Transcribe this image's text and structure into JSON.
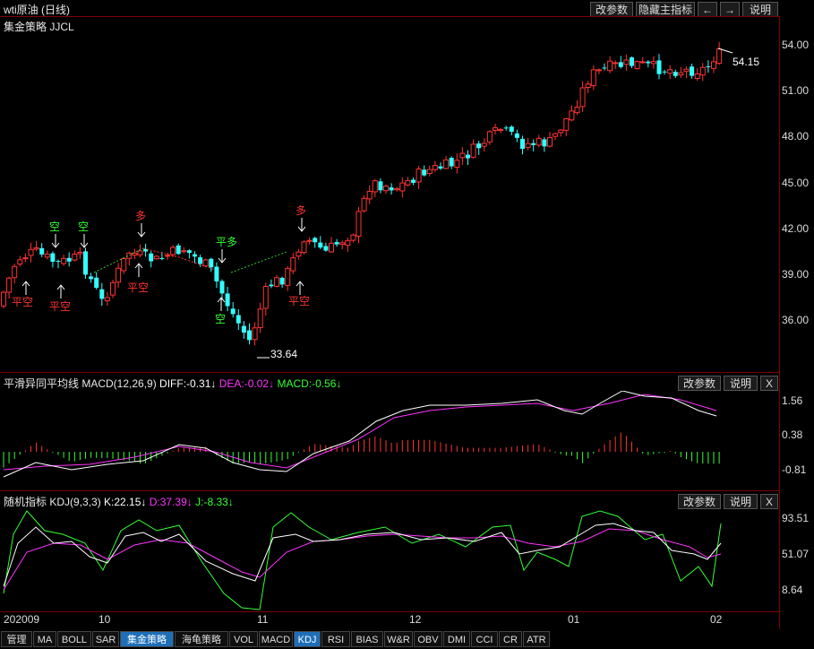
{
  "title": "wti原油 (日线)",
  "top_buttons": [
    "改参数",
    "隐藏主指标",
    "←",
    "→",
    "说明"
  ],
  "main_panel": {
    "indicator": "集金策略 JJCL",
    "y_ticks": [
      "54.00",
      "51.00",
      "48.00",
      "45.00",
      "42.00",
      "39.00",
      "36.00"
    ],
    "last_price": "54.15",
    "low_price": "33.64",
    "signals": [
      "空",
      "空",
      "多",
      "平多",
      "多"
    ],
    "signals_cover": [
      "平空",
      "平空",
      "平空",
      "空",
      "平空"
    ]
  },
  "macd_panel": {
    "name": "平滑异同平均线 MACD(12,26,9)",
    "diff": "DIFF:-0.31↓",
    "dea": "DEA:-0.02↓",
    "macd": "MACD:-0.56↓",
    "y_ticks": [
      "1.56",
      "0.38",
      "-0.81"
    ],
    "buttons": [
      "改参数",
      "说明",
      "X"
    ]
  },
  "kdj_panel": {
    "name": "随机指标 KDJ(9,3,3)",
    "k": "K:22.15↓",
    "d": "D:37.39↓",
    "j": "J:-8.33↓",
    "y_ticks": [
      "93.51",
      "51.07",
      "8.64"
    ],
    "buttons": [
      "改参数",
      "说明",
      "X"
    ]
  },
  "x_ticks": [
    "202009",
    "10",
    "11",
    "12",
    "01",
    "02"
  ],
  "tabs": [
    "管理",
    "MA",
    "BOLL",
    "SAR",
    "集金策略",
    "海龟策略",
    "VOL",
    "MACD",
    "KDJ",
    "RSI",
    "BIAS",
    "W&R",
    "OBV",
    "DMI",
    "CCI",
    "CR",
    "ATR"
  ],
  "colors": {
    "up": "#ff3333",
    "down": "#33ffff",
    "diff": "#ffffff",
    "dea": "#ff33ff",
    "j": "#33ff33",
    "frame": "#7a0000"
  }
}
